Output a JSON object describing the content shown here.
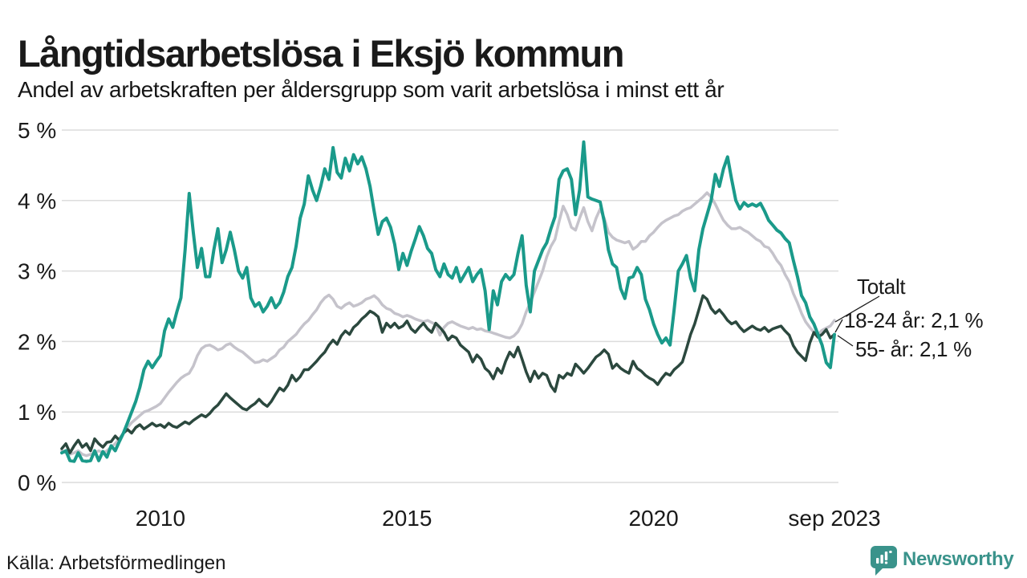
{
  "header": {
    "title": "Långtidsarbetslösa i Eksjö kommun",
    "subtitle": "Andel av arbetskraften per åldersgrupp som varit arbetslösa i minst ett år"
  },
  "footer": {
    "source": "Källa: Arbetsförmedlingen",
    "brand": "Newsworthy"
  },
  "colors": {
    "accent_teal": "#1a9a8a",
    "dark_green": "#2b483e",
    "light_gray": "#c5c3cb",
    "grid": "#dcdcdc",
    "text": "#1a1a1a",
    "brand_teal": "#3a938b"
  },
  "chart_data": {
    "type": "line",
    "title": "Långtidsarbetslösa i Eksjö kommun",
    "subtitle": "Andel av arbetskraften per åldersgrupp som varit arbetslösa i minst ett år",
    "x_unit": "month",
    "x_start": "2008-01",
    "x_end": "2023-09",
    "ylim": [
      0,
      5
    ],
    "grid": "horizontal",
    "y_ticks": [
      "0 %",
      "1 %",
      "2 %",
      "3 %",
      "4 %",
      "5 %"
    ],
    "x_ticks": [
      {
        "label": "2010",
        "month_index": 24
      },
      {
        "label": "2015",
        "month_index": 84
      },
      {
        "label": "2020",
        "month_index": 144
      },
      {
        "label": "sep 2023",
        "month_index": 188
      }
    ],
    "legend_position": "end-of-line-labels",
    "series": [
      {
        "name": "Totalt",
        "end_label": "Totalt",
        "end_value_pct": 2.3,
        "color": "#c5c3cb",
        "stroke_width": 3.5,
        "values": [
          0.45,
          0.42,
          0.4,
          0.42,
          0.45,
          0.4,
          0.38,
          0.4,
          0.42,
          0.45,
          0.42,
          0.45,
          0.5,
          0.55,
          0.62,
          0.7,
          0.78,
          0.85,
          0.9,
          0.95,
          1.0,
          1.02,
          1.05,
          1.08,
          1.12,
          1.2,
          1.28,
          1.35,
          1.42,
          1.48,
          1.52,
          1.55,
          1.65,
          1.8,
          1.9,
          1.94,
          1.95,
          1.92,
          1.88,
          1.9,
          1.95,
          1.97,
          1.92,
          1.88,
          1.85,
          1.8,
          1.75,
          1.7,
          1.71,
          1.74,
          1.72,
          1.76,
          1.8,
          1.88,
          1.92,
          2.0,
          2.05,
          2.1,
          2.18,
          2.25,
          2.3,
          2.38,
          2.45,
          2.55,
          2.62,
          2.66,
          2.6,
          2.5,
          2.47,
          2.52,
          2.55,
          2.5,
          2.52,
          2.55,
          2.6,
          2.62,
          2.65,
          2.6,
          2.52,
          2.47,
          2.45,
          2.4,
          2.38,
          2.35,
          2.37,
          2.35,
          2.32,
          2.3,
          2.28,
          2.3,
          2.27,
          2.24,
          2.09,
          2.2,
          2.26,
          2.28,
          2.25,
          2.22,
          2.2,
          2.18,
          2.2,
          2.17,
          2.18,
          2.15,
          2.14,
          2.12,
          2.1,
          2.08,
          2.06,
          2.05,
          2.08,
          2.14,
          2.25,
          2.42,
          2.55,
          2.7,
          2.85,
          3.0,
          3.2,
          3.35,
          3.45,
          3.7,
          3.92,
          3.8,
          3.62,
          3.58,
          3.75,
          3.9,
          3.7,
          3.57,
          3.75,
          3.88,
          3.75,
          3.55,
          3.48,
          3.44,
          3.42,
          3.4,
          3.42,
          3.31,
          3.35,
          3.42,
          3.42,
          3.5,
          3.55,
          3.62,
          3.68,
          3.72,
          3.75,
          3.78,
          3.8,
          3.85,
          3.88,
          3.9,
          3.95,
          4.0,
          4.05,
          4.11,
          4.05,
          3.95,
          3.83,
          3.72,
          3.65,
          3.6,
          3.6,
          3.62,
          3.58,
          3.55,
          3.5,
          3.45,
          3.42,
          3.35,
          3.33,
          3.25,
          3.15,
          3.08,
          2.95,
          2.85,
          2.68,
          2.55,
          2.4,
          2.28,
          2.2,
          2.13,
          2.1,
          2.16,
          2.19,
          2.22,
          2.3
        ]
      },
      {
        "name": "55- år",
        "end_label": "55- år: 2,1 %",
        "end_value_pct": 2.1,
        "color": "#2b483e",
        "stroke_width": 3.5,
        "values": [
          0.48,
          0.55,
          0.42,
          0.52,
          0.6,
          0.5,
          0.55,
          0.45,
          0.62,
          0.55,
          0.5,
          0.57,
          0.58,
          0.66,
          0.6,
          0.7,
          0.75,
          0.7,
          0.78,
          0.82,
          0.76,
          0.8,
          0.84,
          0.8,
          0.82,
          0.78,
          0.84,
          0.8,
          0.78,
          0.82,
          0.86,
          0.83,
          0.88,
          0.92,
          0.96,
          0.93,
          0.98,
          1.05,
          1.1,
          1.18,
          1.26,
          1.2,
          1.15,
          1.1,
          1.05,
          1.03,
          1.08,
          1.12,
          1.18,
          1.12,
          1.08,
          1.15,
          1.25,
          1.34,
          1.3,
          1.38,
          1.52,
          1.44,
          1.5,
          1.6,
          1.6,
          1.66,
          1.72,
          1.79,
          1.85,
          1.95,
          2.02,
          1.96,
          2.08,
          2.15,
          2.1,
          2.2,
          2.25,
          2.32,
          2.37,
          2.43,
          2.4,
          2.35,
          2.13,
          2.26,
          2.2,
          2.26,
          2.19,
          2.22,
          2.29,
          2.18,
          2.13,
          2.2,
          2.26,
          2.18,
          2.13,
          2.26,
          2.2,
          2.13,
          2.02,
          2.08,
          2.05,
          1.95,
          1.9,
          1.85,
          1.71,
          1.81,
          1.75,
          1.62,
          1.57,
          1.47,
          1.62,
          1.55,
          1.72,
          1.85,
          1.78,
          1.92,
          1.75,
          1.57,
          1.43,
          1.58,
          1.48,
          1.55,
          1.52,
          1.37,
          1.29,
          1.52,
          1.48,
          1.55,
          1.52,
          1.68,
          1.62,
          1.55,
          1.62,
          1.7,
          1.78,
          1.82,
          1.88,
          1.82,
          1.62,
          1.68,
          1.62,
          1.58,
          1.55,
          1.72,
          1.62,
          1.58,
          1.52,
          1.48,
          1.45,
          1.39,
          1.48,
          1.55,
          1.52,
          1.6,
          1.65,
          1.71,
          1.9,
          2.1,
          2.25,
          2.45,
          2.65,
          2.6,
          2.47,
          2.4,
          2.45,
          2.38,
          2.3,
          2.25,
          2.28,
          2.2,
          2.14,
          2.18,
          2.22,
          2.18,
          2.16,
          2.2,
          2.14,
          2.18,
          2.2,
          2.22,
          2.15,
          2.09,
          1.94,
          1.85,
          1.79,
          1.73,
          1.98,
          2.13,
          2.06,
          2.1,
          2.17,
          2.05,
          2.1
        ]
      },
      {
        "name": "18-24 år",
        "end_label": "18-24 år: 2,1 %",
        "end_value_pct": 2.1,
        "color": "#1a9a8a",
        "stroke_width": 4,
        "values": [
          0.42,
          0.45,
          0.31,
          0.3,
          0.42,
          0.31,
          0.3,
          0.31,
          0.45,
          0.31,
          0.44,
          0.36,
          0.52,
          0.45,
          0.58,
          0.7,
          0.85,
          1.0,
          1.15,
          1.35,
          1.6,
          1.72,
          1.63,
          1.72,
          1.8,
          2.15,
          2.32,
          2.2,
          2.42,
          2.62,
          3.3,
          4.1,
          3.55,
          3.05,
          3.32,
          2.92,
          2.92,
          3.3,
          3.6,
          3.12,
          3.3,
          3.55,
          3.3,
          3.0,
          2.9,
          3.05,
          2.62,
          2.5,
          2.55,
          2.42,
          2.5,
          2.62,
          2.48,
          2.55,
          2.7,
          2.92,
          3.05,
          3.35,
          3.75,
          3.95,
          4.35,
          4.15,
          4.0,
          4.2,
          4.45,
          4.3,
          4.75,
          4.4,
          4.32,
          4.6,
          4.42,
          4.65,
          4.52,
          4.62,
          4.45,
          4.2,
          3.85,
          3.52,
          3.7,
          3.75,
          3.62,
          3.38,
          3.02,
          3.25,
          3.08,
          3.28,
          3.45,
          3.63,
          3.5,
          3.32,
          3.25,
          3.02,
          2.92,
          3.1,
          2.95,
          2.9,
          3.05,
          2.85,
          2.95,
          3.05,
          2.85,
          2.95,
          3.02,
          2.72,
          2.17,
          2.72,
          2.52,
          2.85,
          2.95,
          2.88,
          2.95,
          3.25,
          3.5,
          2.8,
          2.42,
          3.0,
          3.15,
          3.3,
          3.4,
          3.6,
          3.77,
          4.3,
          4.42,
          4.45,
          4.3,
          3.8,
          4.15,
          4.83,
          4.05,
          4.02,
          4.0,
          3.98,
          3.7,
          3.3,
          3.1,
          3.05,
          2.75,
          2.61,
          2.9,
          2.92,
          3.05,
          2.95,
          2.6,
          2.45,
          2.25,
          2.1,
          1.98,
          2.05,
          1.95,
          2.45,
          3.0,
          3.1,
          3.22,
          2.9,
          2.72,
          3.3,
          3.6,
          3.8,
          4.0,
          4.37,
          4.2,
          4.45,
          4.62,
          4.3,
          4.0,
          3.88,
          3.97,
          3.92,
          3.95,
          3.92,
          3.96,
          3.85,
          3.72,
          3.65,
          3.58,
          3.54,
          3.46,
          3.4,
          3.15,
          2.92,
          2.65,
          2.55,
          2.35,
          2.25,
          2.1,
          1.95,
          1.7,
          1.63,
          2.1
        ]
      }
    ]
  }
}
